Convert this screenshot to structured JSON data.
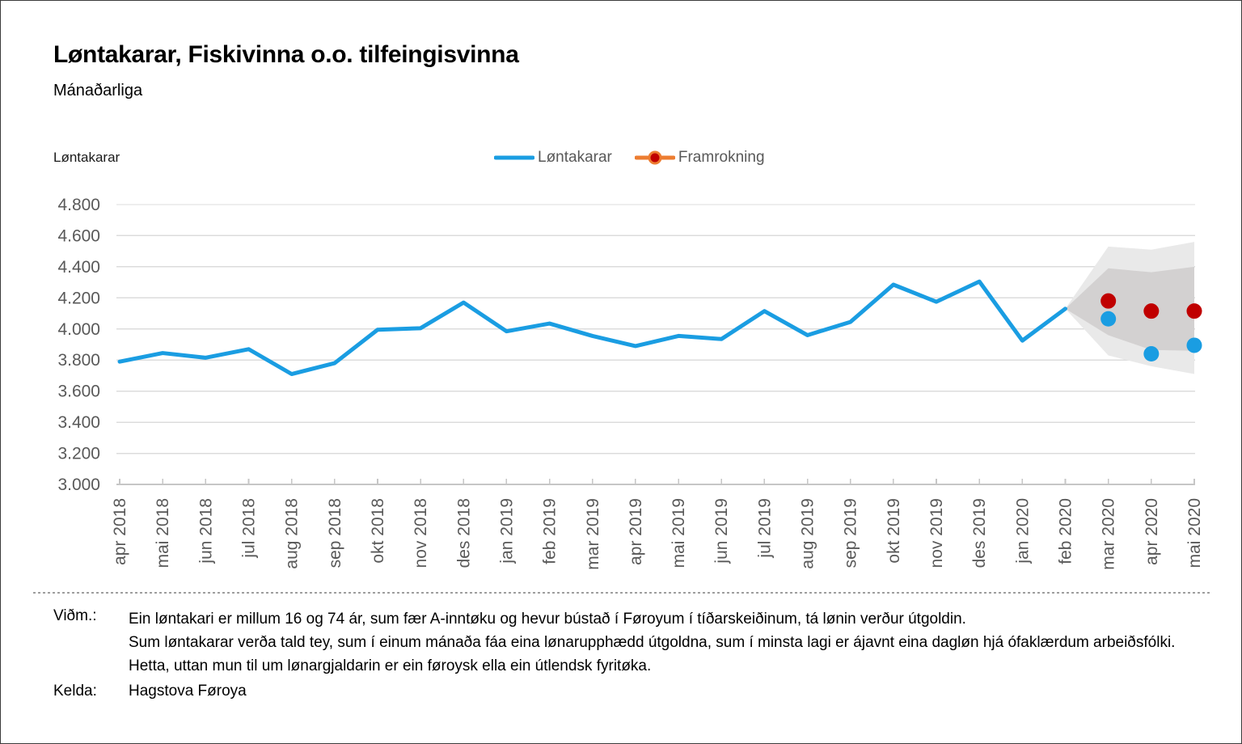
{
  "header": {
    "title": "Løntakarar, Fiskivinna o.o. tilfeingisvinna",
    "subtitle": "Mánaðarliga"
  },
  "chart_data": {
    "type": "line",
    "title": "Løntakarar, Fiskivinna o.o. tilfeingisvinna",
    "subtitle": "Mánaðarliga",
    "unit_label": "Løntakarar",
    "xlabel": "",
    "ylabel": "Løntakarar",
    "ylim": [
      3000,
      4800
    ],
    "grid": true,
    "legend_position": "top-center",
    "y_ticks": [
      3000,
      3200,
      3400,
      3600,
      3800,
      4000,
      4200,
      4400,
      4600,
      4800
    ],
    "y_tick_labels": [
      "3.000",
      "3.200",
      "3.400",
      "3.600",
      "3.800",
      "4.000",
      "4.200",
      "4.400",
      "4.600",
      "4.800"
    ],
    "categories": [
      "apr 2018",
      "mai 2018",
      "jun 2018",
      "jul 2018",
      "aug 2018",
      "sep 2018",
      "okt 2018",
      "nov 2018",
      "des 2018",
      "jan 2019",
      "feb 2019",
      "mar 2019",
      "apr 2019",
      "mai 2019",
      "jun 2019",
      "jul 2019",
      "aug 2019",
      "sep 2019",
      "okt 2019",
      "nov 2019",
      "des 2019",
      "jan 2020",
      "feb 2020",
      "mar 2020",
      "apr 2020",
      "mai 2020"
    ],
    "legend": [
      {
        "label": "Løntakarar",
        "color": "#1a9de2",
        "marker": "line"
      },
      {
        "label": "Framrokning",
        "color": "#ed7d31",
        "dot_color": "#c00000",
        "marker": "line-dot"
      }
    ],
    "line_series": {
      "name": "Løntakarar",
      "color": "#1a9de2",
      "values": [
        3790,
        3845,
        3815,
        3870,
        3710,
        3780,
        3995,
        4005,
        4170,
        3985,
        4035,
        3955,
        3890,
        3955,
        3935,
        4115,
        3960,
        4045,
        4285,
        4175,
        4305,
        3925,
        4130
      ]
    },
    "forecast_points": {
      "name": "Framrokning",
      "color": "#c00000",
      "points": [
        {
          "category": "mar 2020",
          "value": 4180
        },
        {
          "category": "apr 2020",
          "value": 4115
        },
        {
          "category": "mai 2020",
          "value": 4115
        }
      ]
    },
    "actual_points": {
      "name": "Løntakarar",
      "color": "#1a9de2",
      "points": [
        {
          "category": "mar 2020",
          "value": 4065
        },
        {
          "category": "apr 2020",
          "value": 3840
        },
        {
          "category": "mai 2020",
          "value": 3895
        }
      ]
    },
    "confidence_bands": {
      "categories": [
        "feb 2020",
        "mar 2020",
        "apr 2020",
        "mai 2020"
      ],
      "outer": {
        "color": "#e9e9e9",
        "top": [
          4130,
          4530,
          4510,
          4560
        ],
        "bottom": [
          4130,
          3830,
          3760,
          3710
        ]
      },
      "inner": {
        "color": "#d3d1d1",
        "top": [
          4130,
          4390,
          4365,
          4400
        ],
        "bottom": [
          4130,
          3960,
          3865,
          3860
        ]
      }
    },
    "colors": {
      "gridline": "#dcdcdc",
      "axis": "#c6c6c6",
      "tick_text": "#595959"
    }
  },
  "footer": {
    "note_label": "Viðm.:",
    "note_lines": [
      "Ein løntakari er millum 16 og 74 ár, sum fær A-inntøku og hevur bústað í Føroyum í tíðarskeiðinum, tá lønin verður útgoldin.",
      "Sum løntakarar verða tald tey, sum í einum mánaða fáa eina lønarupphædd útgoldna, sum í minsta lagi er ájavnt eina dagløn hjá ófaklærdum arbeiðsfólki.",
      "Hetta, uttan mun til um lønargjaldarin er ein føroysk ella ein útlendsk fyritøka."
    ],
    "source_label": "Kelda:",
    "source": "Hagstova Føroya"
  }
}
